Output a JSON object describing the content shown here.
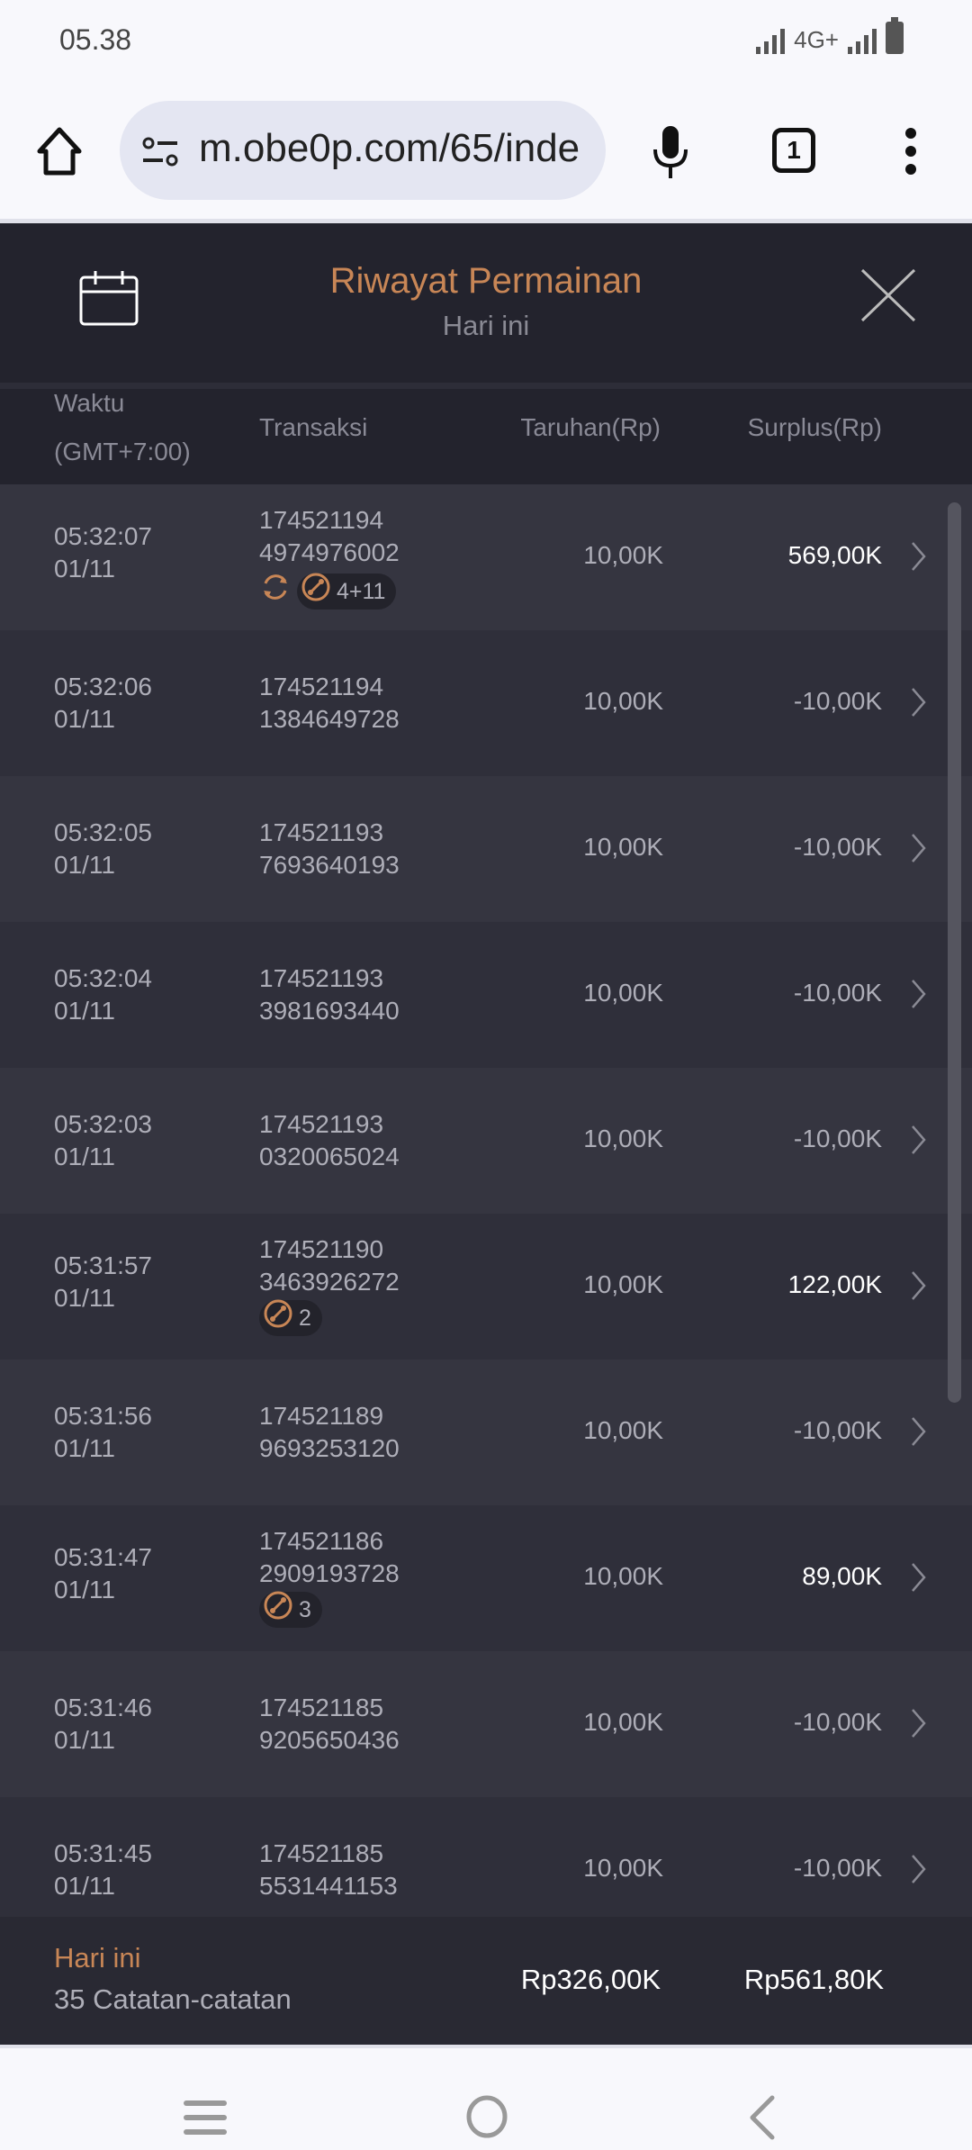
{
  "status_bar": {
    "time": "05.38",
    "network": "4G+"
  },
  "browser": {
    "url": "m.obe0p.com/65/inde",
    "tab_count": "1"
  },
  "header": {
    "title": "Riwayat Permainan",
    "subtitle": "Hari ini"
  },
  "columns": {
    "time_line1": "Waktu",
    "time_line2": "(GMT+7:00)",
    "transaction": "Transaksi",
    "bet": "Taruhan(Rp)",
    "surplus": "Surplus(Rp)"
  },
  "rows": [
    {
      "time": "05:32:07",
      "date": "01/11",
      "tx1": "174521194",
      "tx2": "4974976002",
      "bet": "10,00K",
      "surplus": "569,00K",
      "positive": true,
      "refresh_tag": true,
      "tag": "4+11"
    },
    {
      "time": "05:32:06",
      "date": "01/11",
      "tx1": "174521194",
      "tx2": "1384649728",
      "bet": "10,00K",
      "surplus": "-10,00K"
    },
    {
      "time": "05:32:05",
      "date": "01/11",
      "tx1": "174521193",
      "tx2": "7693640193",
      "bet": "10,00K",
      "surplus": "-10,00K"
    },
    {
      "time": "05:32:04",
      "date": "01/11",
      "tx1": "174521193",
      "tx2": "3981693440",
      "bet": "10,00K",
      "surplus": "-10,00K"
    },
    {
      "time": "05:32:03",
      "date": "01/11",
      "tx1": "174521193",
      "tx2": "0320065024",
      "bet": "10,00K",
      "surplus": "-10,00K"
    },
    {
      "time": "05:31:57",
      "date": "01/11",
      "tx1": "174521190",
      "tx2": "3463926272",
      "bet": "10,00K",
      "surplus": "122,00K",
      "positive": true,
      "tag": "2"
    },
    {
      "time": "05:31:56",
      "date": "01/11",
      "tx1": "174521189",
      "tx2": "9693253120",
      "bet": "10,00K",
      "surplus": "-10,00K"
    },
    {
      "time": "05:31:47",
      "date": "01/11",
      "tx1": "174521186",
      "tx2": "2909193728",
      "bet": "10,00K",
      "surplus": "89,00K",
      "positive": true,
      "tag": "3"
    },
    {
      "time": "05:31:46",
      "date": "01/11",
      "tx1": "174521185",
      "tx2": "9205650436",
      "bet": "10,00K",
      "surplus": "-10,00K"
    },
    {
      "time": "05:31:45",
      "date": "01/11",
      "tx1": "174521185",
      "tx2": "5531441153",
      "bet": "10,00K",
      "surplus": "-10,00K"
    }
  ],
  "footer": {
    "period": "Hari ini",
    "records": "35 Catatan-catatan",
    "total_bet": "Rp326,00K",
    "total_surplus": "Rp561,80K"
  },
  "colors": {
    "accent": "#c88656",
    "bg": "#23232d",
    "row_a": "#353540",
    "row_b": "#2f2f3a"
  }
}
